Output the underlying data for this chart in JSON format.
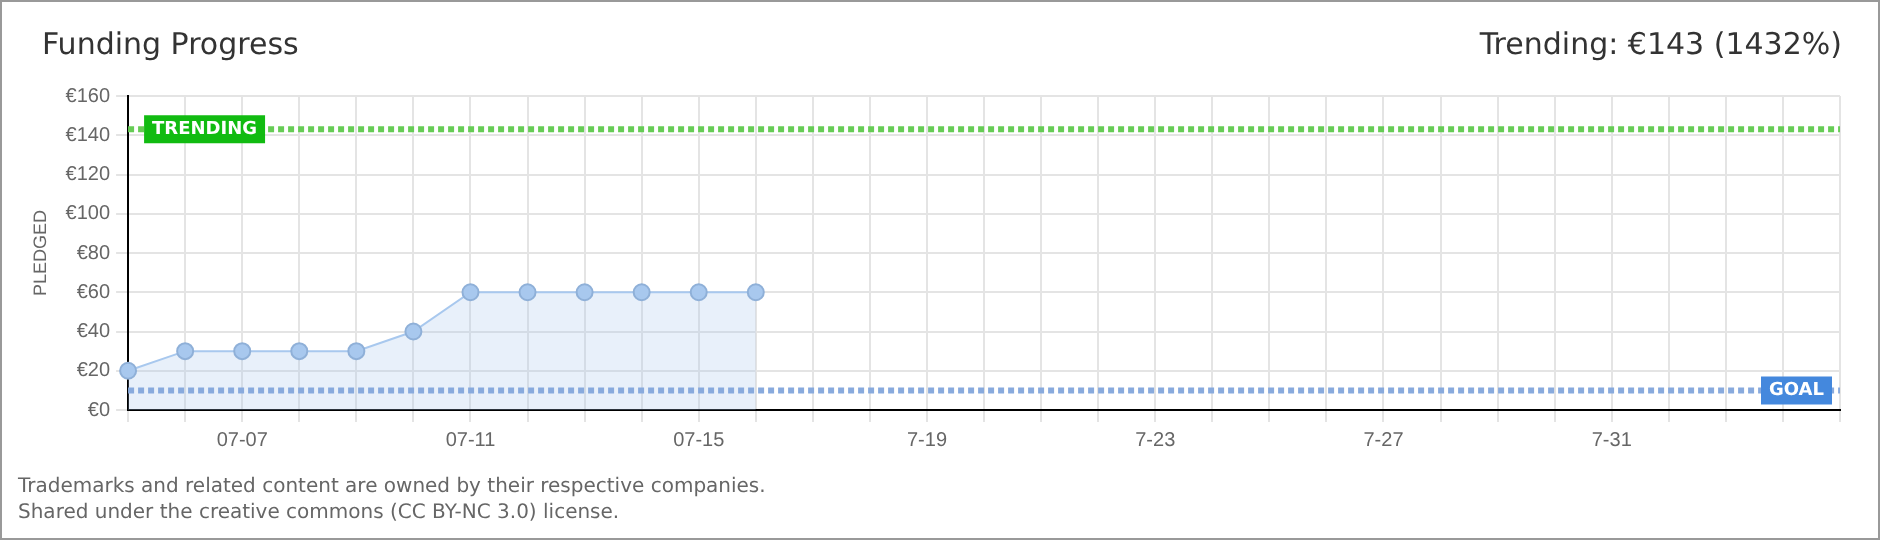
{
  "chart_data": {
    "type": "area",
    "title": "Funding Progress",
    "subtitle": "Trending: €143 (1432%)",
    "ylabel": "PLEDGED",
    "categories": [
      null,
      null,
      "07-07",
      null,
      null,
      null,
      "07-11",
      null,
      null,
      null,
      "07-15",
      null,
      null,
      null,
      "7-19",
      null,
      null,
      null,
      "7-23",
      null,
      null,
      null,
      "7-27",
      null,
      null,
      null,
      "7-31",
      null,
      null,
      null,
      null
    ],
    "series": [
      {
        "color": "#a8c8ee",
        "values": [
          20,
          30,
          30,
          30,
          30,
          40,
          60,
          60,
          60,
          60,
          60,
          60,
          null,
          null,
          null,
          null,
          null,
          null,
          null,
          null,
          null,
          null,
          null,
          null,
          null,
          null,
          null,
          null,
          null,
          null,
          null
        ]
      }
    ],
    "ylim": [
      0,
      160
    ],
    "yticks": [
      {
        "value": 0,
        "label": "€0"
      },
      {
        "value": 20,
        "label": "€20"
      },
      {
        "value": 40,
        "label": "€40"
      },
      {
        "value": 60,
        "label": "€60"
      },
      {
        "value": 80,
        "label": "€80"
      },
      {
        "value": 100,
        "label": "€100"
      },
      {
        "value": 120,
        "label": "€120"
      },
      {
        "value": 140,
        "label": "€140"
      },
      {
        "value": 160,
        "label": "€160"
      }
    ],
    "ref_lines": [
      {
        "axis": "y",
        "value": 143,
        "label": "TRENDING",
        "color": "#66cc55",
        "line_style": "dotted"
      },
      {
        "axis": "y",
        "value": 10,
        "label": "GOAL",
        "color": "#88aadd",
        "line_style": "dotted"
      }
    ],
    "annotations": [
      "Trademarks and related content are owned by their respective companies.",
      "Shared under the creative commons (CC BY-NC 3.0) license."
    ],
    "grid": true,
    "marker": "circle",
    "legend": false
  }
}
